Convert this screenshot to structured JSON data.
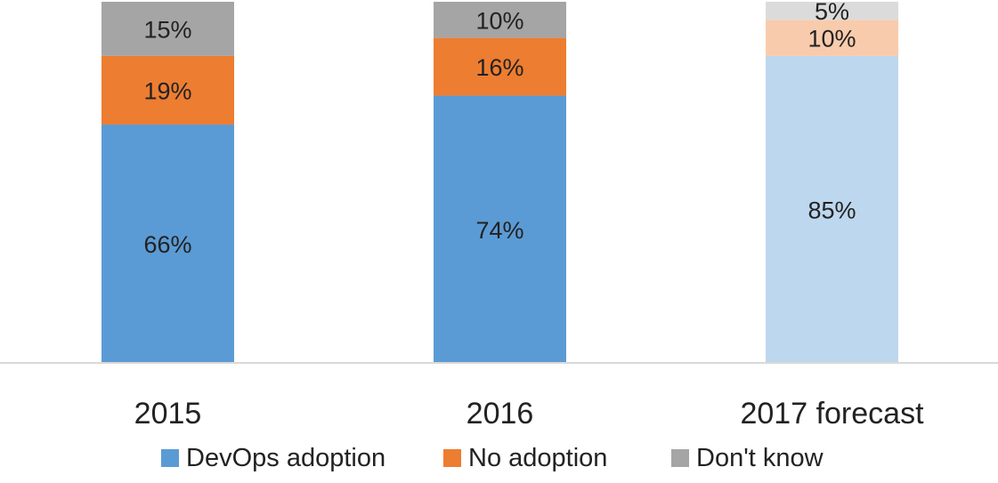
{
  "chart_data": {
    "type": "bar",
    "stacked": true,
    "categories": [
      "2015",
      "2016",
      "2017 forecast"
    ],
    "series": [
      {
        "name": "DevOps adoption",
        "values": [
          66,
          74,
          85
        ],
        "color": "#5b9bd5",
        "forecast_color": "#bdd7ee"
      },
      {
        "name": "No adoption",
        "values": [
          19,
          16,
          10
        ],
        "color": "#ed7d31",
        "forecast_color": "#f8cbad"
      },
      {
        "name": "Don't know",
        "values": [
          15,
          10,
          5
        ],
        "color": "#a5a5a5",
        "forecast_color": "#dbdbdb"
      }
    ],
    "value_labels": [
      [
        "66%",
        "74%",
        "85%"
      ],
      [
        "19%",
        "16%",
        "10%"
      ],
      [
        "15%",
        "10%",
        "5%"
      ]
    ],
    "forecast_category_index": 2,
    "title": "",
    "xlabel": "",
    "ylabel": "",
    "ylim": [
      0,
      100
    ],
    "grid": false,
    "legend_placement": "bottom"
  }
}
